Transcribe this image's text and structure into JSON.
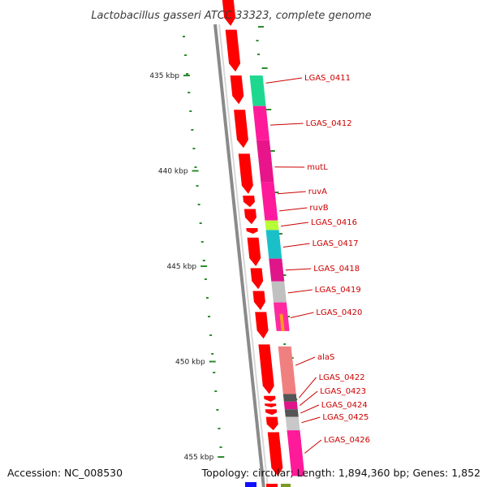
{
  "title": "Lactobacillus gasseri ATCC 33323, complete genome",
  "accession": "Accession: NC_008530",
  "topology": "Topology: circular; Length: 1,894,360 bp; Genes: 1,852",
  "colors": {
    "forward": "#ff0000",
    "backbone": "#8a8a8a",
    "tick": "#2e8b2e",
    "label": "#cc0000"
  },
  "kbp_ticks": [
    {
      "label": "435 kbp",
      "kbp": 435
    },
    {
      "label": "440 kbp",
      "kbp": 440
    },
    {
      "label": "445 kbp",
      "kbp": 445
    },
    {
      "label": "450 kbp",
      "kbp": 450
    },
    {
      "label": "455 kbp",
      "kbp": 455
    }
  ],
  "forward_genes": [
    {
      "start": 430.2,
      "end": 432.4
    },
    {
      "start": 432.6,
      "end": 434.8
    },
    {
      "start": 435.0,
      "end": 436.5
    },
    {
      "start": 436.8,
      "end": 438.8
    },
    {
      "start": 439.1,
      "end": 441.2
    },
    {
      "start": 441.3,
      "end": 441.9
    },
    {
      "start": 442.0,
      "end": 442.8
    },
    {
      "start": 443.0,
      "end": 443.3
    },
    {
      "start": 443.5,
      "end": 445.0
    },
    {
      "start": 445.1,
      "end": 446.2
    },
    {
      "start": 446.3,
      "end": 447.3
    },
    {
      "start": 447.4,
      "end": 448.8
    },
    {
      "start": 449.1,
      "end": 451.7
    },
    {
      "start": 451.8,
      "end": 452.1
    },
    {
      "start": 452.2,
      "end": 452.4
    },
    {
      "start": 452.5,
      "end": 452.8
    },
    {
      "start": 452.9,
      "end": 453.6
    },
    {
      "start": 453.7,
      "end": 456.0
    }
  ],
  "category_blocks": [
    {
      "start": 435.0,
      "end": 436.6,
      "color": "#1fd88f"
    },
    {
      "start": 436.6,
      "end": 438.4,
      "color": "#ff1a9a"
    },
    {
      "start": 438.4,
      "end": 440.6,
      "color": "#e8158a"
    },
    {
      "start": 440.6,
      "end": 442.0,
      "color": "#ff1a9a"
    },
    {
      "start": 442.0,
      "end": 442.6,
      "color": "#ff1aa0"
    },
    {
      "start": 442.6,
      "end": 443.1,
      "color": "#b8ff38"
    },
    {
      "start": 443.1,
      "end": 444.6,
      "color": "#1ac0c8"
    },
    {
      "start": 444.6,
      "end": 445.8,
      "color": "#e0158a"
    },
    {
      "start": 445.8,
      "end": 446.9,
      "color": "#c0c0c0"
    },
    {
      "start": 446.9,
      "end": 448.4,
      "color": "#ff2aa0"
    },
    {
      "start": 447.5,
      "end": 448.4,
      "color": "#ff9a20",
      "inner": true
    },
    {
      "start": 449.2,
      "end": 451.7,
      "color": "#f08080"
    },
    {
      "start": 451.7,
      "end": 452.1,
      "color": "#555555"
    },
    {
      "start": 452.1,
      "end": 452.5,
      "color": "#e0158a"
    },
    {
      "start": 452.5,
      "end": 452.9,
      "color": "#555555"
    },
    {
      "start": 452.9,
      "end": 453.6,
      "color": "#c8c8c8"
    },
    {
      "start": 453.6,
      "end": 456.0,
      "color": "#ff1a9a"
    }
  ],
  "gene_labels": [
    {
      "name": "LGAS_0411",
      "kbp": 435.4
    },
    {
      "name": "LGAS_0412",
      "kbp": 437.6
    },
    {
      "name": "mutL",
      "kbp": 439.8
    },
    {
      "name": "ruvA",
      "kbp": 441.2
    },
    {
      "name": "ruvB",
      "kbp": 442.1
    },
    {
      "name": "LGAS_0416",
      "kbp": 442.9
    },
    {
      "name": "LGAS_0417",
      "kbp": 444.0
    },
    {
      "name": "LGAS_0418",
      "kbp": 445.2
    },
    {
      "name": "LGAS_0419",
      "kbp": 446.4
    },
    {
      "name": "LGAS_0420",
      "kbp": 447.7
    },
    {
      "name": "alaS",
      "kbp": 450.2
    },
    {
      "name": "LGAS_0422",
      "kbp": 451.9
    },
    {
      "name": "LGAS_0423",
      "kbp": 452.3
    },
    {
      "name": "LGAS_0424",
      "kbp": 452.7
    },
    {
      "name": "LGAS_0425",
      "kbp": 453.2
    },
    {
      "name": "LGAS_0426",
      "kbp": 454.8
    }
  ]
}
